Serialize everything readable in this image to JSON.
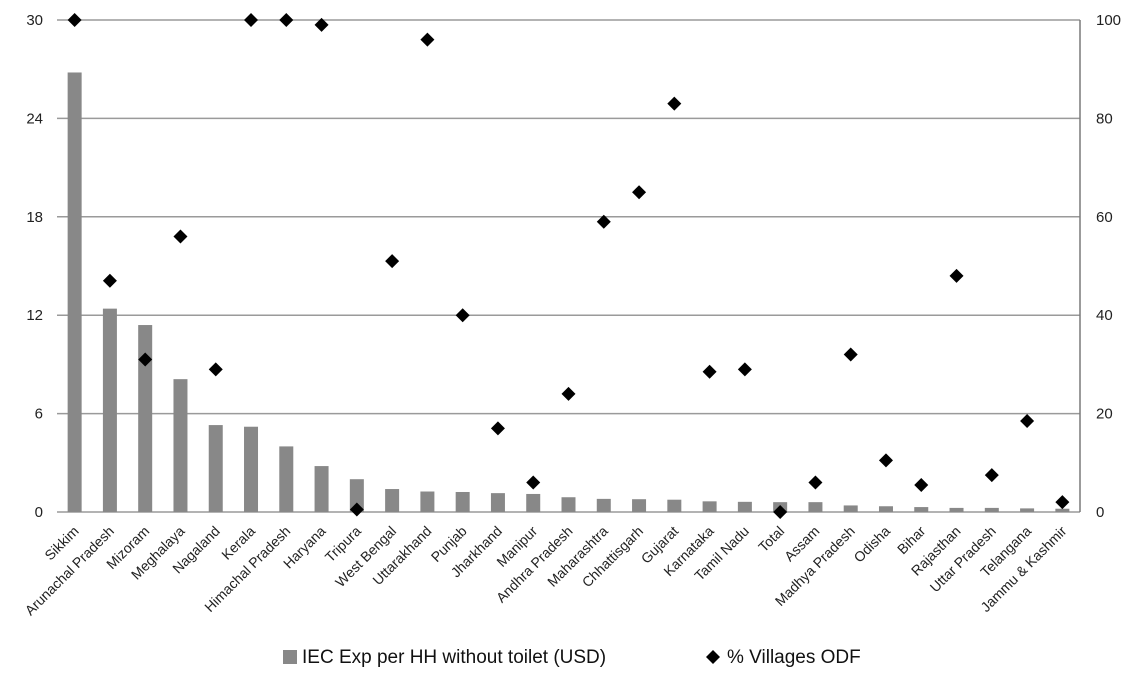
{
  "chart_data": {
    "type": "bar",
    "categories": [
      "Sikkim",
      "Arunachal Pradesh",
      "Mizoram",
      "Meghalaya",
      "Nagaland",
      "Kerala",
      "Himachal Pradesh",
      "Haryana",
      "Tripura",
      "West Bengal",
      "Uttarakhand",
      "Punjab",
      "Jharkhand",
      "Manipur",
      "Andhra Pradesh",
      "Maharashtra",
      "Chhattisgarh",
      "Gujarat",
      "Karnataka",
      "Tamil Nadu",
      "Total",
      "Assam",
      "Madhya Pradesh",
      "Odisha",
      "Bihar",
      "Rajasthan",
      "Uttar Pradesh",
      "Telangana",
      "Jammu & Kashmir"
    ],
    "series": [
      {
        "name": "IEC Exp per HH without toilet (USD)",
        "type": "bar",
        "axis": "left",
        "color": "#888888",
        "values": [
          26.8,
          12.4,
          11.4,
          8.1,
          5.3,
          5.2,
          4.0,
          2.8,
          2.0,
          1.4,
          1.25,
          1.22,
          1.15,
          1.1,
          0.9,
          0.8,
          0.78,
          0.75,
          0.65,
          0.62,
          0.6,
          0.6,
          0.4,
          0.35,
          0.3,
          0.25,
          0.25,
          0.22,
          0.2
        ]
      },
      {
        "name": "% Villages ODF",
        "type": "scatter",
        "axis": "right",
        "color": "#000000",
        "marker": "diamond",
        "values": [
          100,
          47,
          31,
          56,
          29,
          100,
          100,
          99,
          0.5,
          51,
          96,
          40,
          17,
          6,
          24,
          59,
          65,
          83,
          28.5,
          29,
          0,
          6,
          32,
          10.5,
          5.5,
          48,
          7.5,
          18.5,
          2
        ]
      }
    ],
    "y_left": {
      "min": 0,
      "max": 30,
      "ticks": [
        0,
        6,
        12,
        18,
        24,
        30
      ]
    },
    "y_right": {
      "min": 0,
      "max": 100,
      "ticks": [
        0,
        20,
        40,
        60,
        80,
        100
      ]
    },
    "grid": true,
    "legend_position": "bottom"
  }
}
